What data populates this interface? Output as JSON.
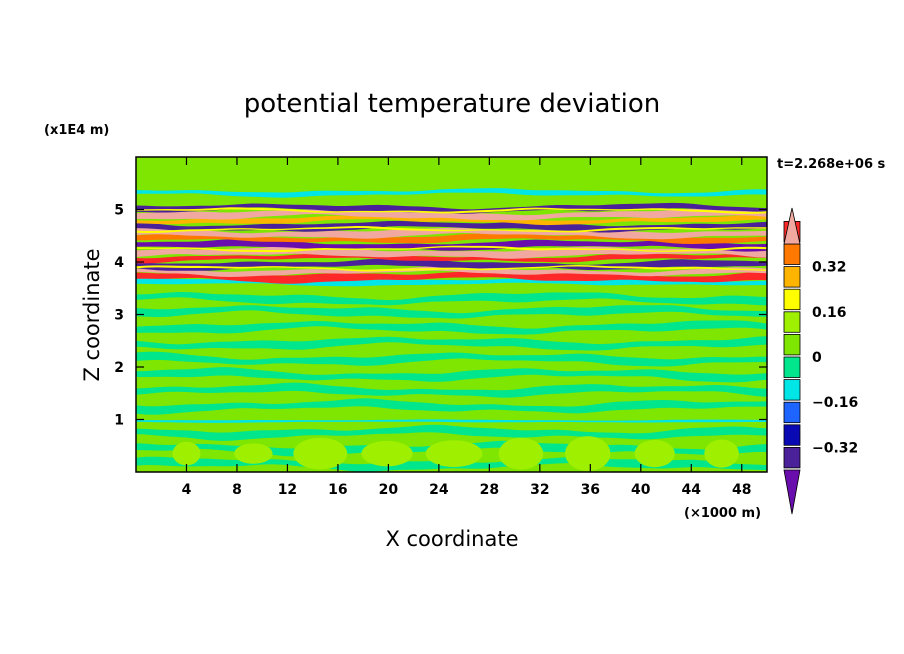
{
  "chart_data": {
    "type": "heatmap",
    "title": "potential temperature deviation",
    "xlabel": "X coordinate",
    "ylabel": "Z coordinate",
    "x_unit": "(×1000 m)",
    "y_unit": "(x1E4 m)",
    "time_label": "t=2.268e+06 s",
    "xlim": [
      0,
      50
    ],
    "ylim": [
      0,
      6
    ],
    "x_ticks": [
      4,
      8,
      12,
      16,
      20,
      24,
      28,
      32,
      36,
      40,
      44,
      48
    ],
    "x_tick_labels": [
      "4",
      "8",
      "12",
      "16",
      "20",
      "24",
      "28",
      "32",
      "36",
      "40",
      "44",
      "48"
    ],
    "y_ticks": [
      1,
      2,
      3,
      4,
      5
    ],
    "y_tick_labels": [
      "1",
      "2",
      "3",
      "4",
      "5"
    ],
    "colorbar": {
      "levels": [
        -0.48,
        -0.4,
        -0.32,
        -0.24,
        -0.16,
        -0.08,
        0,
        0.08,
        0.16,
        0.24,
        0.32,
        0.4,
        0.48
      ],
      "labeled_levels": [
        0.32,
        0.16,
        0,
        -0.16,
        -0.32
      ],
      "labels": [
        "0.32",
        "0.16",
        "0",
        "−0.16",
        "−0.32"
      ],
      "colors": [
        "#6a0dad",
        "#4b2199",
        "#0a0ab4",
        "#1e64ff",
        "#00e6e6",
        "#00e68c",
        "#7ee600",
        "#9ef000",
        "#ffff00",
        "#ffb400",
        "#ff7800",
        "#ff2828",
        "#f0a8a0"
      ]
    },
    "bands": [
      {
        "z": [
          0,
          0.9
        ],
        "desc": "mixed green/aqua (near 0)"
      },
      {
        "z": [
          0.95,
          1.0
        ],
        "desc": "thin mixed line"
      },
      {
        "z": [
          1.0,
          3.4
        ],
        "desc": "green/aqua alternating layers"
      },
      {
        "z": [
          3.4,
          5.1
        ],
        "desc": "strong alternating purple/blue and pink/red layers"
      },
      {
        "z": [
          5.1,
          6.0
        ],
        "desc": "green with aqua"
      }
    ]
  }
}
